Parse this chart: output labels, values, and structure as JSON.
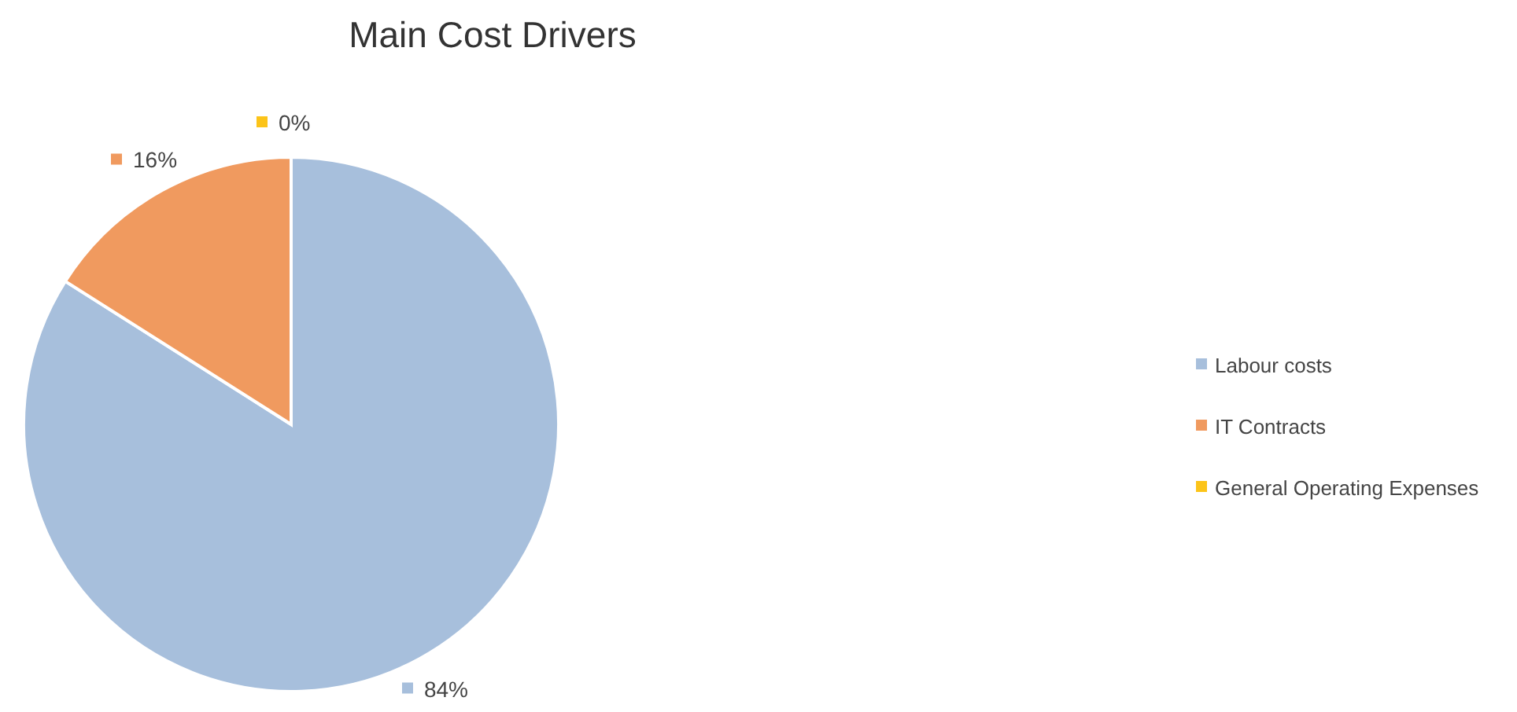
{
  "chart_data": {
    "type": "pie",
    "title": "Main Cost Drivers",
    "categories": [
      "Labour costs",
      "IT Contracts",
      "General Operating Expenses"
    ],
    "values": [
      84,
      16,
      0
    ],
    "colors": [
      "#a7bfdc",
      "#f09a5f",
      "#fcc419"
    ],
    "value_labels": [
      "84%",
      "16%",
      "0%"
    ],
    "legend": "right"
  }
}
